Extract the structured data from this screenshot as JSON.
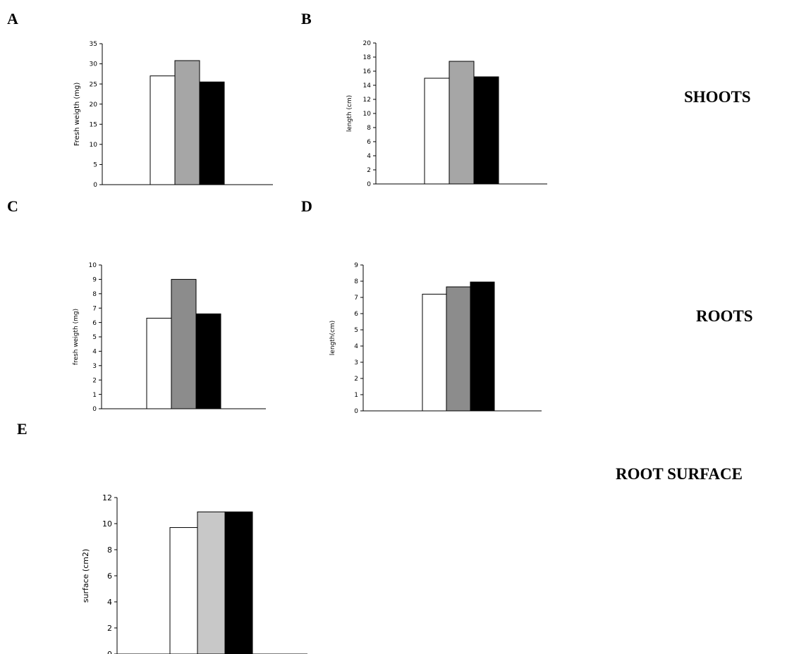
{
  "panels": [
    {
      "letter": "A"
    },
    {
      "letter": "B"
    },
    {
      "letter": "C"
    },
    {
      "letter": "D"
    },
    {
      "letter": "E"
    }
  ],
  "row_labels": {
    "shoots": "SHOOTS",
    "roots": "ROOTS",
    "root_surface": "ROOT SURFACE"
  },
  "chart_data": [
    {
      "panel": "A",
      "type": "bar",
      "ylabel": "Fresh weigth (mg)",
      "ylim": [
        0,
        35
      ],
      "yticks": [
        0,
        5,
        10,
        15,
        20,
        25,
        30,
        35
      ],
      "values": [
        27,
        30.8,
        25.5
      ],
      "colors": [
        "#ffffff",
        "#a6a6a6",
        "#000000"
      ]
    },
    {
      "panel": "B",
      "type": "bar",
      "ylabel": "length (cm)",
      "ylim": [
        0,
        20
      ],
      "yticks": [
        0,
        2,
        4,
        6,
        8,
        10,
        12,
        14,
        16,
        18,
        20
      ],
      "values": [
        15,
        17.4,
        15.2
      ],
      "colors": [
        "#ffffff",
        "#a6a6a6",
        "#000000"
      ]
    },
    {
      "panel": "C",
      "type": "bar",
      "ylabel": "fresh weigth (mg)",
      "ylim": [
        0,
        10
      ],
      "yticks": [
        0,
        1,
        2,
        3,
        4,
        5,
        6,
        7,
        8,
        9,
        10
      ],
      "values": [
        6.3,
        9,
        6.6
      ],
      "colors": [
        "#ffffff",
        "#8c8c8c",
        "#000000"
      ]
    },
    {
      "panel": "D",
      "type": "bar",
      "ylabel": "length(cm)",
      "ylim": [
        0,
        9
      ],
      "yticks": [
        0,
        1,
        2,
        3,
        4,
        5,
        6,
        7,
        8,
        9
      ],
      "values": [
        7.2,
        7.65,
        7.95
      ],
      "colors": [
        "#ffffff",
        "#8c8c8c",
        "#000000"
      ]
    },
    {
      "panel": "E",
      "type": "bar",
      "ylabel": "surface (cm2)",
      "ylim": [
        0,
        12
      ],
      "yticks": [
        0,
        2,
        4,
        6,
        8,
        10,
        12
      ],
      "values": [
        9.7,
        10.9,
        10.9
      ],
      "colors": [
        "#ffffff",
        "#c8c8c8",
        "#000000"
      ]
    }
  ]
}
